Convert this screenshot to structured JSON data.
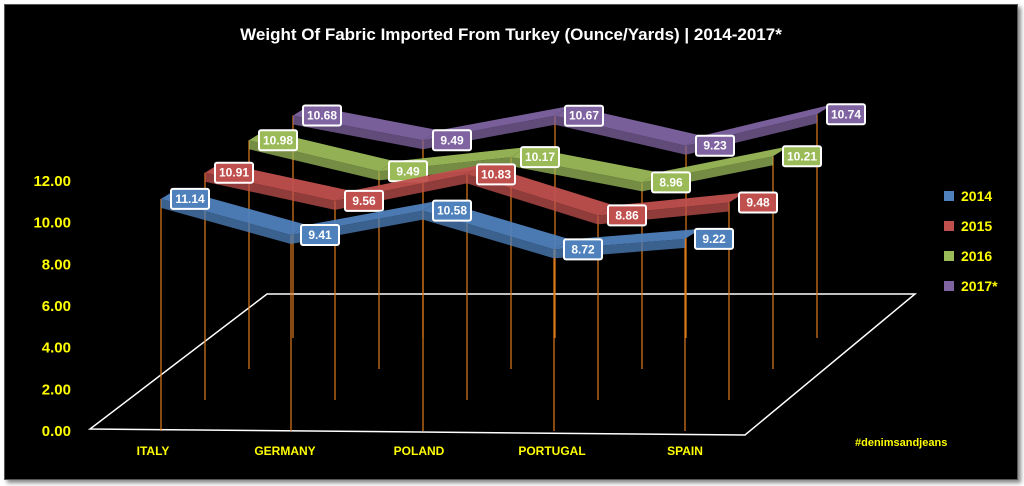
{
  "chart_data": {
    "type": "line",
    "title": "Weight Of Fabric Imported From Turkey  (Ounce/Yards) | 2014-2017*",
    "categories": [
      "ITALY",
      "GERMANY",
      "POLAND",
      "PORTUGAL",
      "SPAIN"
    ],
    "y_ticks": [
      "0.00",
      "2.00",
      "4.00",
      "6.00",
      "8.00",
      "10.00",
      "12.00"
    ],
    "ylim": [
      0,
      12
    ],
    "series": [
      {
        "name": "2014",
        "color": "#4f81bd",
        "values": [
          11.14,
          9.41,
          10.58,
          8.72,
          9.22
        ]
      },
      {
        "name": "2015",
        "color": "#c0504d",
        "values": [
          10.91,
          9.56,
          10.83,
          8.86,
          9.48
        ]
      },
      {
        "name": "2016",
        "color": "#9bbb59",
        "values": [
          10.98,
          9.49,
          10.17,
          8.96,
          10.21
        ]
      },
      {
        "name": "2017*",
        "color": "#8064a2",
        "values": [
          10.68,
          9.49,
          10.67,
          9.23,
          10.74
        ]
      }
    ],
    "legend_position": "right",
    "style": "3d-ribbon"
  },
  "watermark": "#denimsandjeans"
}
